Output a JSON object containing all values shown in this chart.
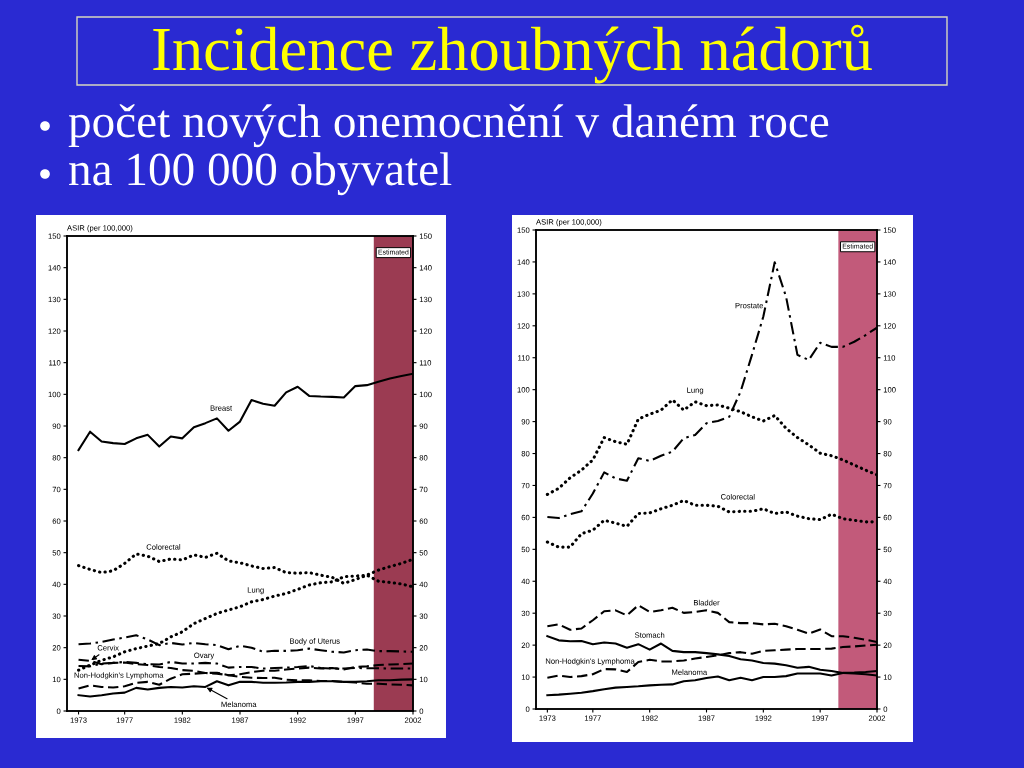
{
  "chart_data": [
    {
      "type": "other",
      "title": "Incidence zhoubných nádorů",
      "annotations": [
        "počet nových onemocnění v daném roce",
        "na 100 000 obyvatel"
      ]
    },
    {
      "type": "line",
      "ylabel": "ASIR (per 100,000)",
      "x": [
        1973,
        1974,
        1975,
        1976,
        1977,
        1978,
        1979,
        1980,
        1981,
        1982,
        1983,
        1984,
        1985,
        1986,
        1987,
        1988,
        1989,
        1990,
        1991,
        1992,
        1993,
        1994,
        1995,
        1996,
        1997,
        1998,
        1999,
        2000,
        2001,
        2002
      ],
      "xlim": [
        1972,
        2002
      ],
      "xticks": [
        1973,
        1977,
        1982,
        1987,
        1992,
        1997,
        2002
      ],
      "ylim": [
        0,
        150
      ],
      "yticks": [
        0,
        10,
        20,
        30,
        40,
        50,
        60,
        70,
        80,
        90,
        100,
        110,
        120,
        130,
        140,
        150
      ],
      "y2lim": [
        0,
        150
      ],
      "y2ticks": [
        0,
        10,
        20,
        30,
        40,
        50,
        60,
        70,
        80,
        90,
        100,
        110,
        120,
        130,
        140,
        150
      ],
      "bands": [
        {
          "axis": "x",
          "from": 1998.6,
          "to": 2002,
          "label": "Estimated",
          "color": "#9b3b52"
        }
      ],
      "series": [
        {
          "name": "Breast",
          "color": "#000000",
          "line_style": "solid",
          "values": [
            82.4,
            88.2,
            85.1,
            84.6,
            84.3,
            86.1,
            87.2,
            83.5,
            86.7,
            86.1,
            89.6,
            90.9,
            92.4,
            88.5,
            91.4,
            98.2,
            97.0,
            96.4,
            100.6,
            102.4,
            99.5,
            99.3,
            99.2,
            99.0,
            102.6,
            102.9,
            104,
            105,
            105.8,
            106.5
          ]
        },
        {
          "name": "Colorectal",
          "color": "#000000",
          "line_style": "dotted",
          "values": [
            45.9,
            44.7,
            43.7,
            44.3,
            46.6,
            49.6,
            48.9,
            47.2,
            48.0,
            47.7,
            49.3,
            48.5,
            49.8,
            47.4,
            46.8,
            45.8,
            45.0,
            45.3,
            43.7,
            43.5,
            43.7,
            42.9,
            42.2,
            40.3,
            41.5,
            42.9,
            41.0,
            40.6,
            40.1,
            39.2
          ]
        },
        {
          "name": "Lung",
          "color": "#000000",
          "line_style": "dotted",
          "values": [
            12.9,
            14.5,
            16.0,
            17.1,
            18.7,
            19.7,
            20.5,
            21.3,
            23.4,
            25.0,
            27.6,
            29.2,
            30.8,
            31.9,
            32.9,
            34.5,
            35.2,
            36.3,
            37.1,
            38.4,
            39.8,
            40.5,
            40.8,
            42.4,
            42.6,
            42.9,
            44.5,
            45.6,
            46.6,
            47.9
          ]
        },
        {
          "name": "Body of Uterus",
          "color": "#000000",
          "line_style": "dashdot",
          "values": [
            21.1,
            21.3,
            21.8,
            22.6,
            23.2,
            23.9,
            22.6,
            20.8,
            21.5,
            21.0,
            21.5,
            21.1,
            20.8,
            19.5,
            20.6,
            20.0,
            18.7,
            19.0,
            19.0,
            19.2,
            19.7,
            19.2,
            18.7,
            18.5,
            19.2,
            19.4,
            18.9,
            18.9,
            18.8,
            18.7
          ]
        },
        {
          "name": "Cervix",
          "color": "#000000",
          "line_style": "dashed",
          "values": [
            16.2,
            15.8,
            14.8,
            15.2,
            15.3,
            14.8,
            14.5,
            13.9,
            13.6,
            12.9,
            12.7,
            12.0,
            11.8,
            11.3,
            10.8,
            10.5,
            10.4,
            10.5,
            9.9,
            9.7,
            9.7,
            9.5,
            9.5,
            9.2,
            9.0,
            8.6,
            8.6,
            8.4,
            8.3,
            8.1
          ]
        },
        {
          "name": "Ovary",
          "color": "#000000",
          "line_style": "dashdot",
          "values": [
            14.2,
            14.1,
            15.0,
            15.2,
            15.5,
            15.2,
            14.8,
            14.7,
            15.5,
            15.0,
            15.0,
            15.2,
            15.0,
            13.7,
            13.9,
            13.9,
            13.4,
            13.6,
            13.7,
            13.9,
            14.2,
            13.6,
            13.4,
            13.4,
            13.6,
            13.5,
            13.5,
            13.4,
            13.4,
            13.4
          ]
        },
        {
          "name": "Non-Hodgkin's Lymphoma",
          "color": "#000000",
          "line_style": "dashed",
          "values": [
            7.1,
            8.1,
            7.6,
            7.4,
            7.8,
            8.9,
            9.2,
            8.3,
            10.2,
            11.6,
            11.8,
            12.0,
            12.1,
            11.3,
            11.6,
            12.3,
            12.7,
            12.7,
            13.1,
            13.4,
            13.7,
            13.4,
            13.6,
            13.1,
            13.9,
            14.1,
            14.5,
            14.7,
            14.8,
            15.0
          ]
        },
        {
          "name": "Melanoma",
          "color": "#000000",
          "line_style": "solid",
          "values": [
            5.0,
            4.6,
            5.0,
            5.5,
            5.8,
            7.3,
            6.8,
            7.3,
            7.6,
            7.4,
            7.8,
            7.6,
            9.4,
            8.1,
            9.2,
            9.2,
            8.9,
            8.9,
            9.0,
            9.2,
            9.2,
            9.4,
            9.4,
            9.2,
            9.2,
            9.4,
            9.7,
            9.7,
            9.9,
            10.0
          ]
        }
      ]
    },
    {
      "type": "line",
      "ylabel": "ASIR (per 100,000)",
      "x": [
        1973,
        1974,
        1975,
        1976,
        1977,
        1978,
        1979,
        1980,
        1981,
        1982,
        1983,
        1984,
        1985,
        1986,
        1987,
        1988,
        1989,
        1990,
        1991,
        1992,
        1993,
        1994,
        1995,
        1996,
        1997,
        1998,
        1999,
        2000,
        2001,
        2002
      ],
      "xlim": [
        1972,
        2002
      ],
      "xticks": [
        1973,
        1977,
        1982,
        1987,
        1992,
        1997,
        2002
      ],
      "ylim": [
        0,
        150
      ],
      "yticks": [
        0,
        10,
        20,
        30,
        40,
        50,
        60,
        70,
        80,
        90,
        100,
        110,
        120,
        130,
        140,
        150
      ],
      "y2lim": [
        0,
        150
      ],
      "y2ticks": [
        0,
        10,
        20,
        30,
        40,
        50,
        60,
        70,
        80,
        90,
        100,
        110,
        120,
        130,
        140,
        150
      ],
      "bands": [
        {
          "axis": "x",
          "from": 1998.6,
          "to": 2002,
          "label": "Estimated",
          "color": "#c25a7a"
        }
      ],
      "series": [
        {
          "name": "Prostate",
          "color": "#000000",
          "line_style": "dashdot",
          "values": [
            60.1,
            59.8,
            61.0,
            61.9,
            67.5,
            74.1,
            72.2,
            71.5,
            78.5,
            77.7,
            79.3,
            80.6,
            84.8,
            85.8,
            89.5,
            90.2,
            91.5,
            99.4,
            110.9,
            122.9,
            139.9,
            129.1,
            110.9,
            109.3,
            114.7,
            113.4,
            113.4,
            115.0,
            117.1,
            119.4
          ]
        },
        {
          "name": "Lung",
          "color": "#000000",
          "line_style": "dotted",
          "values": [
            67.2,
            69.1,
            72.4,
            74.8,
            78.0,
            85.0,
            83.7,
            82.9,
            90.8,
            92.3,
            93.6,
            96.8,
            93.6,
            96.2,
            95.0,
            95.2,
            94.2,
            93.1,
            91.5,
            90.2,
            91.9,
            87.9,
            85.0,
            82.7,
            80.1,
            79.3,
            78.0,
            76.4,
            74.8,
            73.3
          ]
        },
        {
          "name": "Colorectal",
          "color": "#000000",
          "line_style": "dotted",
          "values": [
            52.3,
            50.7,
            50.7,
            54.9,
            56.0,
            59.1,
            58.2,
            57.2,
            61.2,
            61.4,
            62.7,
            63.8,
            65.3,
            63.8,
            63.8,
            63.5,
            61.7,
            61.9,
            61.9,
            62.7,
            61.2,
            61.7,
            60.4,
            59.6,
            59.3,
            61.0,
            59.6,
            59.1,
            58.6,
            58.6
          ]
        },
        {
          "name": "Bladder",
          "color": "#000000",
          "line_style": "dashed",
          "values": [
            25.9,
            26.5,
            24.8,
            25.2,
            27.8,
            30.6,
            30.9,
            29.3,
            32.5,
            30.4,
            30.9,
            31.7,
            30.1,
            30.4,
            30.9,
            30.1,
            27.2,
            26.9,
            26.9,
            26.5,
            26.7,
            25.9,
            24.8,
            23.6,
            24.9,
            22.8,
            22.8,
            22.3,
            21.7,
            21.0
          ]
        },
        {
          "name": "Stomach",
          "color": "#000000",
          "line_style": "solid",
          "values": [
            22.8,
            21.5,
            21.2,
            21.3,
            20.3,
            20.8,
            20.5,
            19.2,
            20.3,
            18.6,
            20.5,
            18.2,
            17.8,
            17.8,
            17.5,
            17.1,
            16.6,
            15.6,
            15.2,
            14.4,
            14.2,
            13.7,
            12.9,
            13.2,
            12.3,
            11.9,
            11.3,
            11.1,
            10.9,
            10.5
          ]
        },
        {
          "name": "Non-Hodgkin's Lymphoma",
          "color": "#000000",
          "line_style": "dashed",
          "values": [
            9.8,
            10.5,
            10.0,
            10.3,
            10.9,
            12.5,
            12.4,
            11.6,
            14.7,
            15.4,
            14.9,
            14.9,
            15.2,
            15.8,
            16.3,
            16.8,
            17.5,
            17.8,
            17.3,
            18.2,
            18.4,
            18.6,
            18.8,
            18.8,
            18.8,
            18.9,
            19.4,
            19.6,
            19.9,
            20.1
          ]
        },
        {
          "name": "Melanoma",
          "color": "#000000",
          "line_style": "solid",
          "values": [
            4.3,
            4.5,
            4.8,
            5.1,
            5.6,
            6.2,
            6.7,
            6.9,
            7.1,
            7.4,
            7.6,
            7.7,
            8.7,
            9.0,
            9.7,
            10.2,
            9.0,
            9.8,
            9.0,
            10.0,
            10.0,
            10.3,
            11.1,
            11.1,
            11.1,
            10.5,
            11.3,
            11.4,
            11.6,
            11.9
          ]
        }
      ]
    }
  ]
}
